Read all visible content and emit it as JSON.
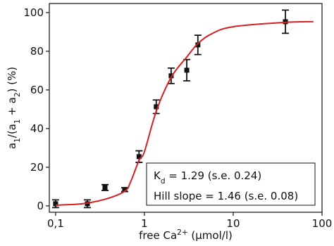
{
  "chart_data": {
    "type": "scatter",
    "x_label": [
      {
        "text": "free Ca"
      },
      {
        "text": "2+",
        "baseline": "super"
      },
      {
        "text": " (µmol/l)"
      }
    ],
    "y_label": [
      {
        "text": "a"
      },
      {
        "text": "1",
        "baseline": "sub"
      },
      {
        "text": "/(a"
      },
      {
        "text": "1",
        "baseline": "sub"
      },
      {
        "text": " + a"
      },
      {
        "text": "2",
        "baseline": "sub"
      },
      {
        "text": ") (%)"
      }
    ],
    "annotations": [
      [
        {
          "text": "K"
        },
        {
          "text": "d",
          "baseline": "sub"
        },
        {
          "text": " = 1.29 (s.e. 0.24)"
        }
      ],
      [
        {
          "text": "Hill slope = 1.46 (s.e. 0.08)"
        }
      ]
    ],
    "xscale": "log",
    "xlim": [
      0.085,
      100
    ],
    "xticks": [
      {
        "value": 0.1,
        "label": "0,1"
      },
      1,
      10,
      100
    ],
    "ylim": [
      -3.3,
      104.7
    ],
    "yticks": [
      0,
      20,
      40,
      60,
      80,
      100
    ],
    "grid": false,
    "series": [
      {
        "type": "scatter",
        "color": "#111111",
        "x": [
          0.1,
          0.228,
          0.36,
          0.6,
          0.87,
          1.36,
          2.0,
          3.0,
          4.0,
          38.7
        ],
        "values": [
          1.1,
          1.1,
          9.5,
          8.4,
          25.5,
          51.3,
          67.3,
          70.2,
          83.3,
          95.3
        ],
        "errors": [
          2,
          2,
          1.5,
          1,
          3,
          3.5,
          4,
          5.5,
          5,
          6
        ]
      },
      {
        "type": "line",
        "color": "#d42020",
        "x": [
          0.1,
          0.2,
          0.37,
          0.6,
          0.7,
          0.87,
          1,
          1.36,
          2,
          3,
          4,
          5.7,
          10,
          40,
          80
        ],
        "values": [
          0.4,
          1.1,
          3.6,
          7.6,
          12.5,
          23.6,
          28,
          49,
          66.5,
          77,
          84,
          89,
          92.7,
          95,
          95.3
        ]
      }
    ]
  }
}
